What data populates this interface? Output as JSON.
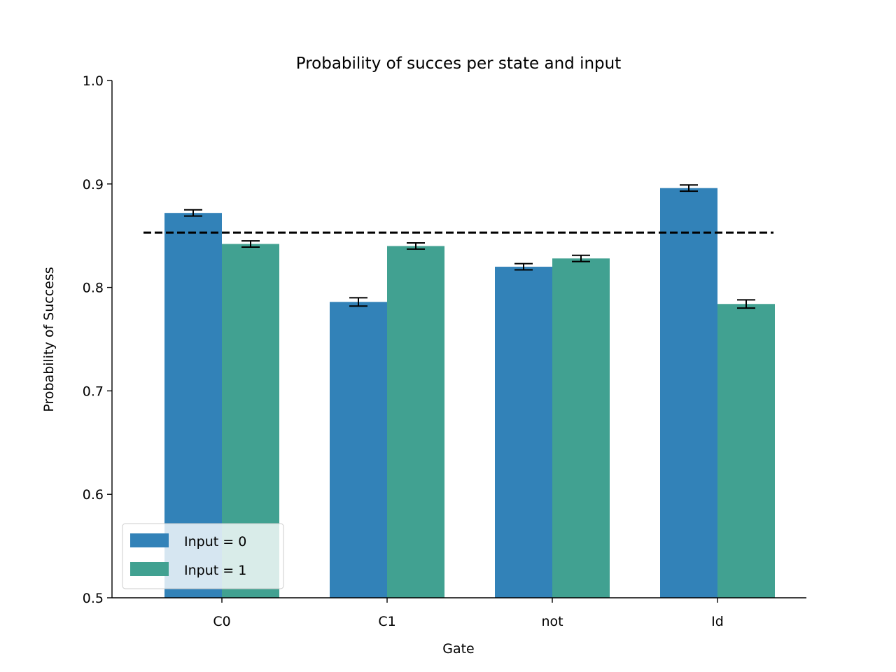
{
  "chart_data": {
    "type": "bar",
    "title": "Probability of succes per state and input",
    "xlabel": "Gate",
    "ylabel": "Probability of Success",
    "ylim": [
      0.5,
      1.0
    ],
    "yticks": [
      0.5,
      0.6,
      0.7,
      0.8,
      0.9,
      1.0
    ],
    "ytick_labels": [
      "0.5",
      "0.6",
      "0.7",
      "0.8",
      "0.9",
      "1.0"
    ],
    "categories": [
      "C0",
      "C1",
      "not",
      "Id"
    ],
    "series": [
      {
        "name": "Input = 0",
        "color": "#3282b8",
        "values": [
          0.872,
          0.786,
          0.82,
          0.896
        ],
        "errors": [
          0.003,
          0.004,
          0.003,
          0.003
        ]
      },
      {
        "name": "Input = 1",
        "color": "#41a191",
        "values": [
          0.842,
          0.84,
          0.828,
          0.784
        ],
        "errors": [
          0.003,
          0.003,
          0.003,
          0.004
        ]
      }
    ],
    "reference_line": {
      "value": 0.853,
      "style": "dashed",
      "color": "#000000"
    },
    "legend": {
      "position": "bottom-left",
      "entries": [
        "Input = 0",
        "Input = 1"
      ]
    },
    "grid": false
  }
}
